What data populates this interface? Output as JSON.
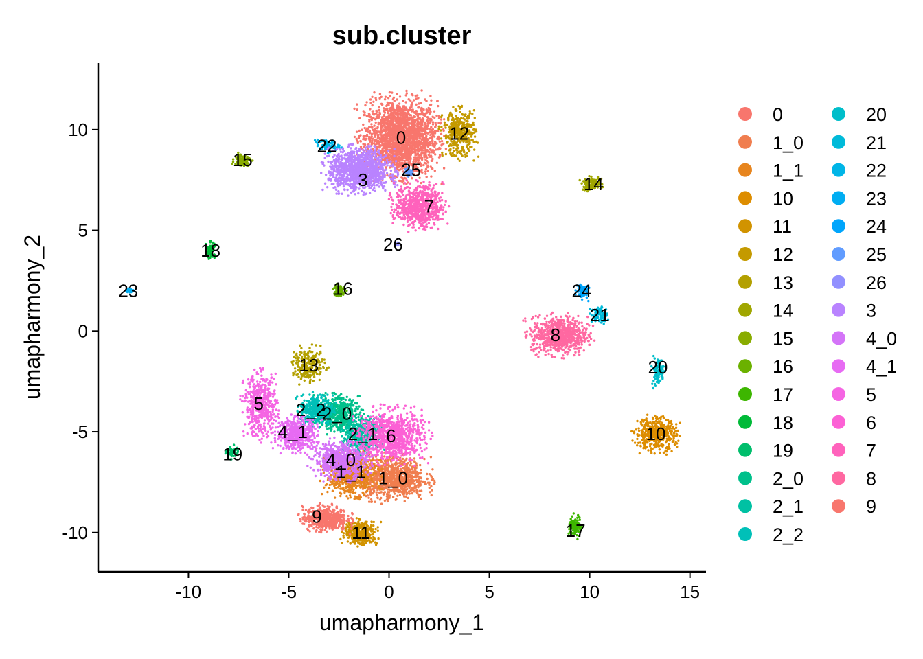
{
  "chart_data": {
    "type": "scatter",
    "title": "sub.cluster",
    "xlabel": "umapharmony_1",
    "ylabel": "umapharmony_2",
    "xlim": [
      -14.5,
      15.8
    ],
    "ylim": [
      -11.95,
      13.3
    ],
    "x_ticks": [
      -10,
      -5,
      0,
      5,
      10,
      15
    ],
    "y_ticks": [
      -10,
      -5,
      0,
      5,
      10
    ],
    "x_tick_labels": [
      "-10",
      "-5",
      "0",
      "5",
      "10",
      "15"
    ],
    "y_tick_labels": [
      "-10",
      "-5",
      "0",
      "5",
      "10"
    ],
    "grid": false,
    "legend_position": "right",
    "legend_columns": 2,
    "clusters": [
      {
        "name": "0",
        "color": "#F8766D",
        "label_xy": [
          0.6,
          9.6
        ],
        "spread": [
          1.8,
          1.8
        ],
        "n": 2200
      },
      {
        "name": "1_0",
        "color": "#F07E4F",
        "label_xy": [
          0.2,
          -7.3
        ],
        "spread": [
          1.6,
          1.0
        ],
        "n": 900
      },
      {
        "name": "1_1",
        "color": "#E7851E",
        "label_xy": [
          -1.9,
          -7.1
        ],
        "spread": [
          1.2,
          1.0
        ],
        "n": 700
      },
      {
        "name": "10",
        "color": "#DD8D00",
        "label_xy": [
          13.3,
          -5.1
        ],
        "spread": [
          1.0,
          0.8
        ],
        "n": 450
      },
      {
        "name": "11",
        "color": "#D19300",
        "label_xy": [
          -1.4,
          -10.0
        ],
        "spread": [
          0.8,
          0.6
        ],
        "n": 350
      },
      {
        "name": "12",
        "color": "#C49A00",
        "label_xy": [
          3.5,
          9.8
        ],
        "spread": [
          0.8,
          1.1
        ],
        "n": 400
      },
      {
        "name": "13",
        "color": "#B3A000",
        "label_xy": [
          -4.0,
          -1.7
        ],
        "spread": [
          0.8,
          0.8
        ],
        "n": 220
      },
      {
        "name": "14",
        "color": "#A0A600",
        "label_xy": [
          10.1,
          7.3
        ],
        "spread": [
          0.5,
          0.3
        ],
        "n": 130
      },
      {
        "name": "15",
        "color": "#89AC00",
        "label_xy": [
          -7.3,
          8.5
        ],
        "spread": [
          0.4,
          0.3
        ],
        "n": 110
      },
      {
        "name": "16",
        "color": "#6BB100",
        "label_xy": [
          -2.5,
          2.0
        ],
        "spread": [
          0.3,
          0.3
        ],
        "n": 90
      },
      {
        "name": "17",
        "color": "#3DB600",
        "label_xy": [
          9.3,
          -9.7
        ],
        "spread": [
          0.3,
          0.5
        ],
        "n": 110
      },
      {
        "name": "18",
        "color": "#00BA38",
        "label_xy": [
          -8.9,
          4.0
        ],
        "spread": [
          0.2,
          0.4
        ],
        "n": 70
      },
      {
        "name": "19",
        "color": "#00BE6C",
        "label_xy": [
          -7.8,
          -6.0
        ],
        "spread": [
          0.3,
          0.3
        ],
        "n": 60
      },
      {
        "name": "2_0",
        "color": "#00C08B",
        "label_xy": [
          -2.6,
          -4.1
        ],
        "spread": [
          1.1,
          0.8
        ],
        "n": 500
      },
      {
        "name": "2_1",
        "color": "#00C1A3",
        "label_xy": [
          -1.3,
          -5.2
        ],
        "spread": [
          0.9,
          0.8
        ],
        "n": 450
      },
      {
        "name": "2_2",
        "color": "#00C0B8",
        "label_xy": [
          -3.6,
          -3.9
        ],
        "spread": [
          0.8,
          0.7
        ],
        "n": 380
      },
      {
        "name": "20",
        "color": "#00BECA",
        "label_xy": [
          13.4,
          -2.0
        ],
        "spread": [
          0.3,
          0.7
        ],
        "n": 90
      },
      {
        "name": "21",
        "color": "#00BAD9",
        "label_xy": [
          10.5,
          0.8
        ],
        "spread": [
          0.4,
          0.4
        ],
        "n": 80
      },
      {
        "name": "22",
        "color": "#00B5E7",
        "label_xy": [
          -3.1,
          9.2
        ],
        "spread": [
          0.6,
          0.3
        ],
        "n": 70
      },
      {
        "name": "23",
        "color": "#00ADF2",
        "label_xy": [
          -12.9,
          2.0
        ],
        "spread": [
          0.2,
          0.1
        ],
        "n": 25
      },
      {
        "name": "24",
        "color": "#00A5FC",
        "label_xy": [
          9.6,
          2.0
        ],
        "spread": [
          0.3,
          0.4
        ],
        "n": 80
      },
      {
        "name": "25",
        "color": "#619CFF",
        "label_xy": [
          1.0,
          7.9
        ],
        "spread": [
          0.2,
          0.2
        ],
        "n": 30
      },
      {
        "name": "26",
        "color": "#9290FF",
        "label_xy": [
          0.4,
          4.3
        ],
        "spread": [
          0.15,
          0.1
        ],
        "n": 15
      },
      {
        "name": "3",
        "color": "#B983FF",
        "label_xy": [
          -1.5,
          8.0
        ],
        "spread": [
          1.5,
          1.0
        ],
        "n": 1200
      },
      {
        "name": "4_0",
        "color": "#D474F8",
        "label_xy": [
          -2.4,
          -6.4
        ],
        "spread": [
          1.3,
          0.9
        ],
        "n": 600
      },
      {
        "name": "4_1",
        "color": "#E76BF3",
        "label_xy": [
          -4.6,
          -5.1
        ],
        "spread": [
          1.0,
          0.8
        ],
        "n": 500
      },
      {
        "name": "5",
        "color": "#F565E3",
        "label_xy": [
          -6.4,
          -3.7
        ],
        "spread": [
          0.8,
          1.5
        ],
        "n": 500
      },
      {
        "name": "6",
        "color": "#FC61D5",
        "label_xy": [
          0.1,
          -5.2
        ],
        "spread": [
          1.6,
          1.2
        ],
        "n": 900
      },
      {
        "name": "7",
        "color": "#FF62BC",
        "label_xy": [
          1.5,
          6.2
        ],
        "spread": [
          1.2,
          1.0
        ],
        "n": 700
      },
      {
        "name": "8",
        "color": "#FF68A1",
        "label_xy": [
          8.5,
          -0.2
        ],
        "spread": [
          1.4,
          0.9
        ],
        "n": 700
      },
      {
        "name": "9",
        "color": "#F8766D",
        "label_xy": [
          -3.2,
          -9.3
        ],
        "spread": [
          1.1,
          0.6
        ],
        "n": 500
      }
    ],
    "point_labels": [
      {
        "text": "0",
        "x": 0.6,
        "y": 9.6
      },
      {
        "text": "12",
        "x": 3.5,
        "y": 9.8
      },
      {
        "text": "22",
        "x": -3.1,
        "y": 9.2
      },
      {
        "text": "15",
        "x": -7.3,
        "y": 8.5
      },
      {
        "text": "3",
        "x": -1.3,
        "y": 7.5
      },
      {
        "text": "25",
        "x": 1.1,
        "y": 8.0
      },
      {
        "text": "7",
        "x": 2.0,
        "y": 6.2
      },
      {
        "text": "14",
        "x": 10.2,
        "y": 7.3
      },
      {
        "text": "26",
        "x": 0.2,
        "y": 4.3
      },
      {
        "text": "18",
        "x": -8.9,
        "y": 4.0
      },
      {
        "text": "23",
        "x": -13.0,
        "y": 2.0
      },
      {
        "text": "16",
        "x": -2.3,
        "y": 2.1
      },
      {
        "text": "24",
        "x": 9.6,
        "y": 2.0
      },
      {
        "text": "21",
        "x": 10.5,
        "y": 0.8
      },
      {
        "text": "8",
        "x": 8.3,
        "y": -0.2
      },
      {
        "text": "13",
        "x": -4.0,
        "y": -1.7
      },
      {
        "text": "20",
        "x": 13.4,
        "y": -1.8
      },
      {
        "text": "5",
        "x": -6.5,
        "y": -3.6
      },
      {
        "text": "2_2",
        "x": -3.9,
        "y": -3.9
      },
      {
        "text": "2_0",
        "x": -2.6,
        "y": -4.1
      },
      {
        "text": "4_1",
        "x": -4.8,
        "y": -5.0
      },
      {
        "text": "2_1",
        "x": -1.3,
        "y": -5.1
      },
      {
        "text": "6",
        "x": 0.1,
        "y": -5.2
      },
      {
        "text": "10",
        "x": 13.3,
        "y": -5.1
      },
      {
        "text": "19",
        "x": -7.8,
        "y": -6.1
      },
      {
        "text": "4_0",
        "x": -2.4,
        "y": -6.4
      },
      {
        "text": "1_1",
        "x": -1.9,
        "y": -7.0
      },
      {
        "text": "1_0",
        "x": 0.2,
        "y": -7.3
      },
      {
        "text": "9",
        "x": -3.6,
        "y": -9.2
      },
      {
        "text": "17",
        "x": 9.3,
        "y": -9.9
      },
      {
        "text": "11",
        "x": -1.4,
        "y": -10.0
      }
    ]
  }
}
